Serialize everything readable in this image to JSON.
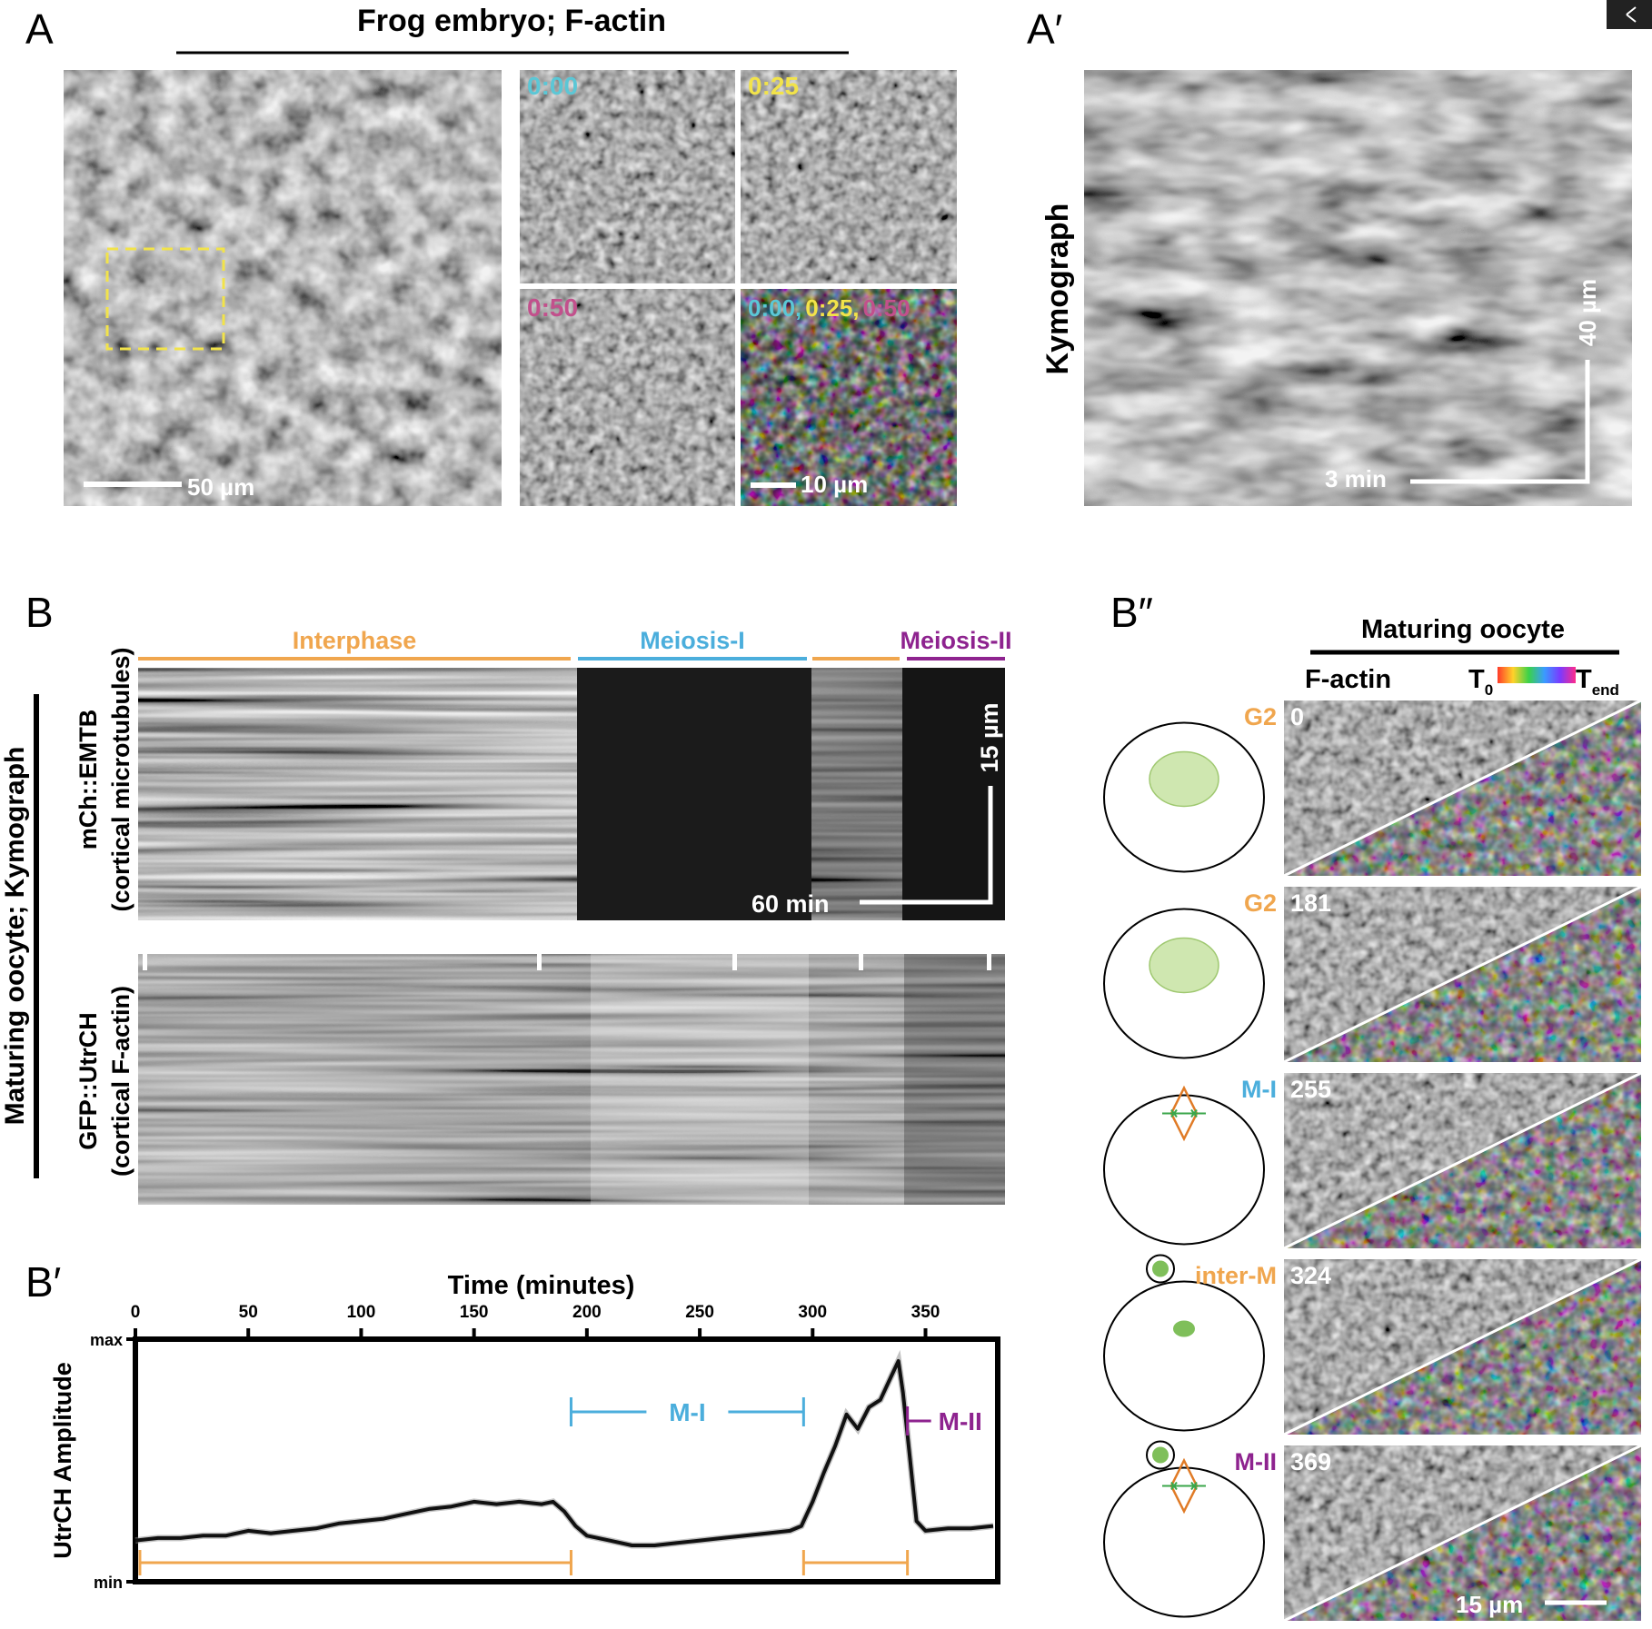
{
  "colors": {
    "orange": "#F0A64E",
    "blue": "#4BAEDC",
    "magenta": "#8E238F",
    "yellow": "#F2E34A",
    "cyan": "#5BC7D6",
    "pink": "#C2508C",
    "green_nucleus": "#CFE7B0",
    "spindle": "#E07A25"
  },
  "panel_a": {
    "letter": "A",
    "title": "Frog embryo; F-actin",
    "scale_main": "50 µm",
    "scale_inset": "10 µm",
    "t0": "0:00",
    "t1": "0:25",
    "t2": "0:50",
    "merge_t0": "0:00,",
    "merge_t1": "0:25,",
    "merge_t2": "0:50"
  },
  "panel_a_prime": {
    "letter": "A′",
    "side_label": "Kymograph",
    "scale_time": "3 min",
    "scale_space": "40 µm"
  },
  "panel_b": {
    "letter": "B",
    "phase_interphase": "Interphase",
    "phase_meiosis1": "Meiosis-I",
    "phase_meiosis2": "Meiosis-II",
    "group_label": "Maturing oocyte; Kymograph",
    "row1_label_a": "mCh::EMTB",
    "row1_label_b": "(cortical microtubules)",
    "row2_label_a": "GFP::UtrCH",
    "row2_label_b": "(cortical F-actin)",
    "scale_time": "60 min",
    "scale_space": "15 µm"
  },
  "panel_b_prime": {
    "letter": "B′",
    "m1": "M-I",
    "m2": "M-II"
  },
  "panel_b_dprime": {
    "letter": "B″",
    "title": "Maturing oocyte",
    "col1": "F-actin",
    "t0_main": "T",
    "t0_sub": "0",
    "tend_main": "T",
    "tend_sub": "end",
    "scale": "15 µm",
    "rows": [
      {
        "stage": "G2",
        "time": "0"
      },
      {
        "stage": "G2",
        "time": "181"
      },
      {
        "stage": "M-I",
        "time": "255"
      },
      {
        "stage": "inter-M",
        "time": "324"
      },
      {
        "stage": "M-II",
        "time": "369"
      }
    ]
  },
  "chart_data": {
    "type": "line",
    "title": "",
    "xlabel": "Time (minutes)",
    "ylabel": "UtrCH Amplitude",
    "xlim": [
      0,
      382
    ],
    "ylim": [
      0,
      1
    ],
    "x_ticks": [
      "0",
      "50",
      "100",
      "150",
      "200",
      "250",
      "300",
      "350"
    ],
    "y_ticks": [
      "max",
      "min"
    ],
    "grid": false,
    "series": [
      {
        "name": "UtrCH amplitude",
        "x": [
          0,
          10,
          20,
          30,
          40,
          50,
          60,
          70,
          80,
          90,
          100,
          110,
          120,
          130,
          140,
          150,
          160,
          170,
          180,
          185,
          190,
          195,
          200,
          210,
          220,
          230,
          240,
          250,
          260,
          270,
          280,
          290,
          295,
          300,
          305,
          310,
          315,
          320,
          325,
          330,
          335,
          338,
          340,
          343,
          346,
          350,
          360,
          370,
          380
        ],
        "y": [
          0.17,
          0.18,
          0.18,
          0.19,
          0.19,
          0.21,
          0.2,
          0.21,
          0.22,
          0.24,
          0.25,
          0.26,
          0.28,
          0.3,
          0.31,
          0.33,
          0.32,
          0.33,
          0.32,
          0.33,
          0.29,
          0.23,
          0.19,
          0.17,
          0.15,
          0.15,
          0.16,
          0.17,
          0.18,
          0.19,
          0.2,
          0.21,
          0.23,
          0.33,
          0.45,
          0.56,
          0.69,
          0.63,
          0.72,
          0.75,
          0.85,
          0.91,
          0.78,
          0.52,
          0.25,
          0.21,
          0.22,
          0.22,
          0.23
        ]
      }
    ],
    "annotations": [
      {
        "label": "M-I",
        "x_start": 193,
        "x_end": 296
      },
      {
        "label": "M-II",
        "x_start": 342,
        "x_end": 382
      },
      {
        "label": "",
        "x_start": 2,
        "x_end": 193
      },
      {
        "label": "",
        "x_start": 296,
        "x_end": 342
      }
    ]
  }
}
